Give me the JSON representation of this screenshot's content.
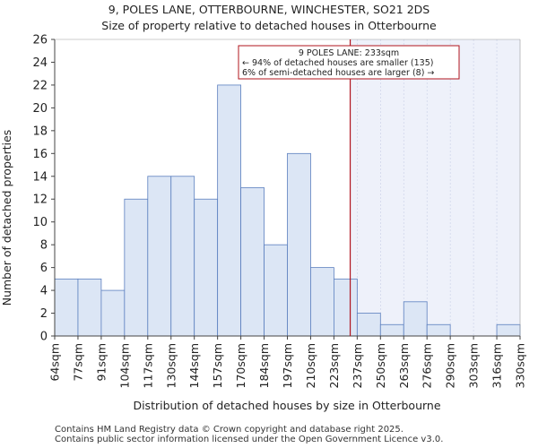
{
  "chart_data": {
    "type": "bar",
    "title": "9, POLES LANE, OTTERBOURNE, WINCHESTER, SO21 2DS",
    "subtitle": "Size of property relative to detached houses in Otterbourne",
    "xlabel": "Distribution of detached houses by size in Otterbourne",
    "ylabel": "Number of detached properties",
    "ylim": [
      0,
      26
    ],
    "yticks": [
      0,
      2,
      4,
      6,
      8,
      10,
      12,
      14,
      16,
      18,
      20,
      22,
      24,
      26
    ],
    "bin_edges": [
      "64sqm",
      "77sqm",
      "91sqm",
      "104sqm",
      "117sqm",
      "130sqm",
      "144sqm",
      "157sqm",
      "170sqm",
      "184sqm",
      "197sqm",
      "210sqm",
      "223sqm",
      "237sqm",
      "250sqm",
      "263sqm",
      "276sqm",
      "290sqm",
      "303sqm",
      "316sqm",
      "330sqm"
    ],
    "values": [
      5,
      5,
      4,
      12,
      14,
      14,
      12,
      22,
      13,
      8,
      16,
      6,
      5,
      2,
      1,
      3,
      1,
      0,
      0,
      1
    ],
    "marker": {
      "value_bin_position": 12.7,
      "label_lines": [
        "9 POLES LANE: 233sqm",
        "← 94% of detached houses are smaller (135)",
        "6% of semi-detached houses are larger (8) →"
      ]
    },
    "colors": {
      "bar_fill": "#dce6f5",
      "bar_stroke": "#5b7fbf",
      "marker": "#b0141e",
      "shade": "#eef1fa"
    }
  },
  "footer": {
    "line1": "Contains HM Land Registry data © Crown copyright and database right 2025.",
    "line2": "Contains public sector information licensed under the Open Government Licence v3.0."
  }
}
